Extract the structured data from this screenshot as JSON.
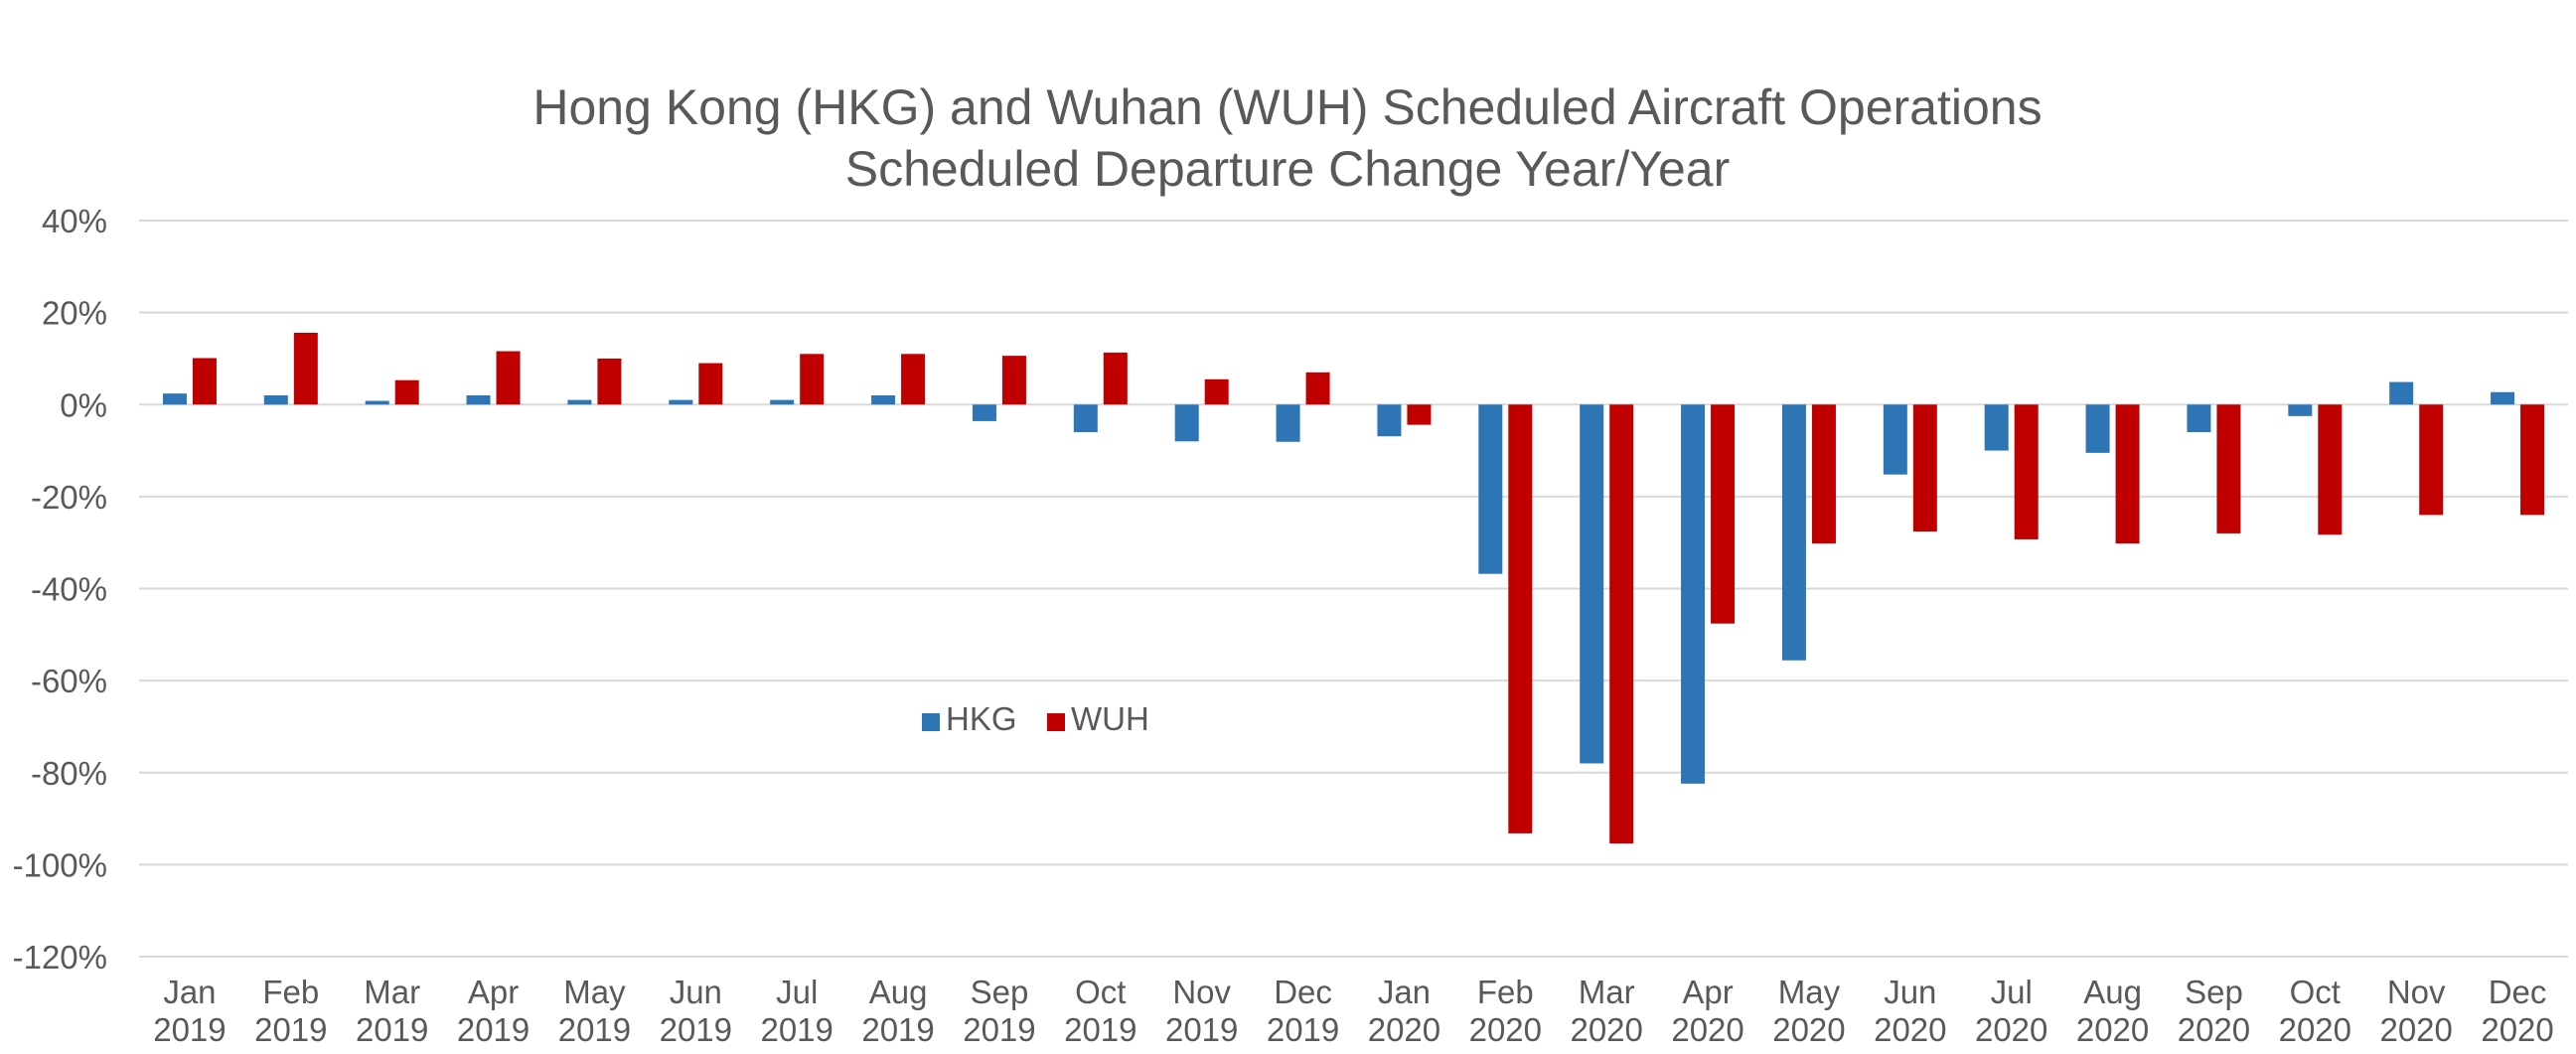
{
  "chart_data": {
    "type": "bar",
    "title": "Hong Kong (HKG) and Wuhan (WUH) Scheduled Aircraft Operations",
    "subtitle": "Scheduled Departure Change Year/Year",
    "xlabel": "",
    "ylabel": "",
    "ylim": [
      -120,
      40
    ],
    "yticks": [
      40,
      20,
      0,
      -20,
      -40,
      -60,
      -80,
      -100,
      -120
    ],
    "ytick_labels": [
      "40%",
      "20%",
      "0%",
      "-20%",
      "-40%",
      "-60%",
      "-80%",
      "-100%",
      "-120%"
    ],
    "grid": true,
    "legend_position": "center-left",
    "categories": [
      [
        "Jan",
        "2019"
      ],
      [
        "Feb",
        "2019"
      ],
      [
        "Mar",
        "2019"
      ],
      [
        "Apr",
        "2019"
      ],
      [
        "May",
        "2019"
      ],
      [
        "Jun",
        "2019"
      ],
      [
        "Jul",
        "2019"
      ],
      [
        "Aug",
        "2019"
      ],
      [
        "Sep",
        "2019"
      ],
      [
        "Oct",
        "2019"
      ],
      [
        "Nov",
        "2019"
      ],
      [
        "Dec",
        "2019"
      ],
      [
        "Jan",
        "2020"
      ],
      [
        "Feb",
        "2020"
      ],
      [
        "Mar",
        "2020"
      ],
      [
        "Apr",
        "2020"
      ],
      [
        "May",
        "2020"
      ],
      [
        "Jun",
        "2020"
      ],
      [
        "Jul",
        "2020"
      ],
      [
        "Aug",
        "2020"
      ],
      [
        "Sep",
        "2020"
      ],
      [
        "Oct",
        "2020"
      ],
      [
        "Nov",
        "2020"
      ],
      [
        "Dec",
        "2020"
      ]
    ],
    "series": [
      {
        "name": "HKG",
        "color": "#2e75b6",
        "values": [
          2.4,
          2.0,
          0.8,
          2.0,
          1.0,
          1.0,
          1.0,
          2.0,
          -3.6,
          -6.0,
          -8.0,
          -8.1,
          -6.9,
          -36.8,
          -78.0,
          -82.4,
          -55.6,
          -15.2,
          -10.0,
          -10.5,
          -6.0,
          -2.5,
          4.9,
          2.7
        ]
      },
      {
        "name": "WUH",
        "color": "#c00000",
        "values": [
          10.1,
          15.6,
          5.3,
          11.6,
          10.0,
          9.0,
          11.0,
          11.0,
          10.6,
          11.3,
          5.5,
          7.0,
          -4.4,
          -93.2,
          -95.4,
          -47.6,
          -30.2,
          -27.6,
          -29.3,
          -30.2,
          -28.0,
          -28.3,
          -24.0,
          -24.0
        ]
      }
    ]
  }
}
